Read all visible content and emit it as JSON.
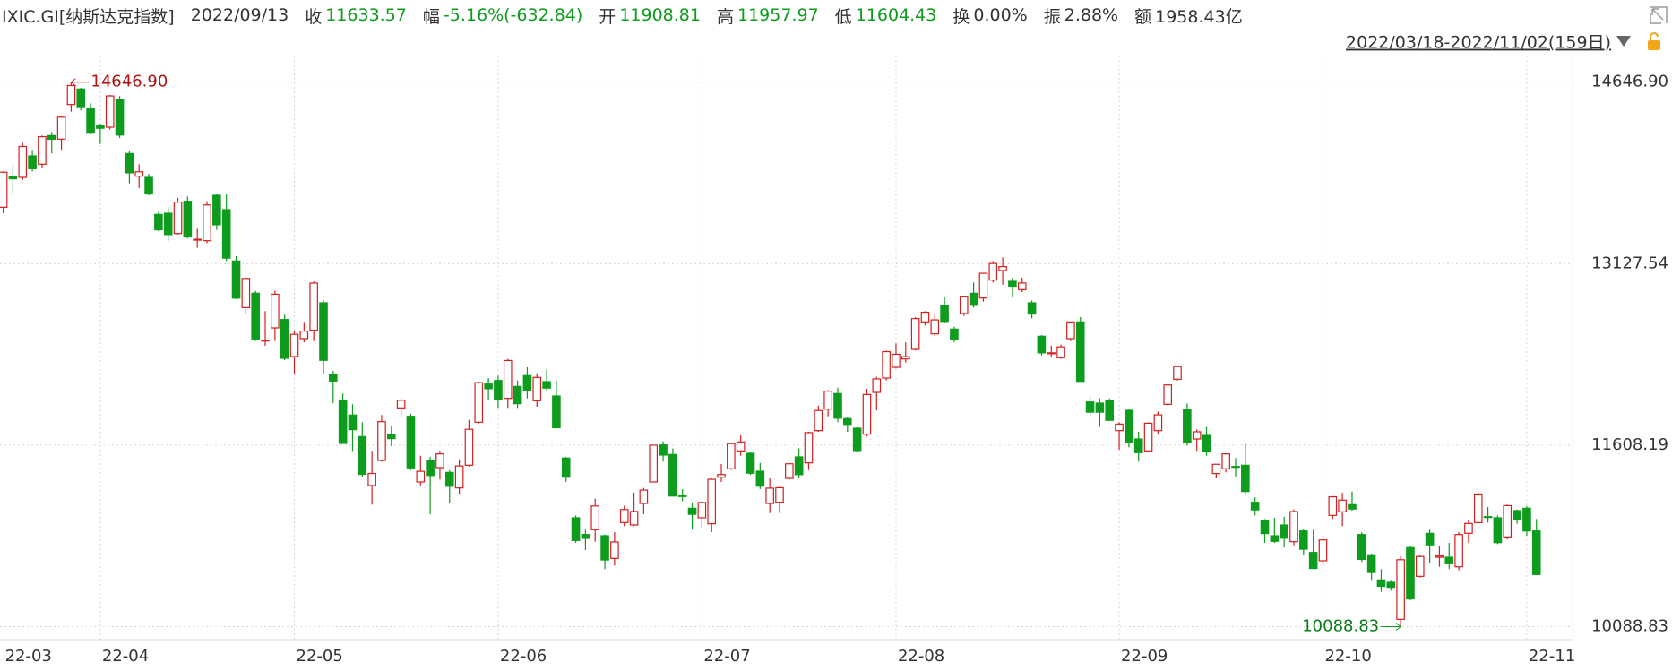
{
  "header": {
    "symbol": "IXIC.GI[纳斯达克指数]",
    "date": "2022/09/13",
    "fields": [
      {
        "label": "收",
        "value": "11633.57",
        "color": "#0e9c1e"
      },
      {
        "label": "幅",
        "value": "-5.16%(-632.84)",
        "color": "#0e9c1e"
      },
      {
        "label": "开",
        "value": "11908.81",
        "color": "#0e9c1e"
      },
      {
        "label": "高",
        "value": "11957.97",
        "color": "#0e9c1e"
      },
      {
        "label": "低",
        "value": "11604.43",
        "color": "#0e9c1e"
      },
      {
        "label": "换",
        "value": "0.00%",
        "color": "#333333"
      },
      {
        "label": "振",
        "value": "2.88%",
        "color": "#333333"
      },
      {
        "label": "额",
        "value": "1958.43亿",
        "color": "#333333"
      }
    ],
    "range": "2022/03/18-2022/11/02(159日)"
  },
  "chart_data": {
    "type": "candlestick",
    "up_color": "#d21f1f",
    "down_color": "#0e9c1e",
    "grid": true,
    "categories": [
      "22-03",
      null,
      null,
      null,
      null,
      null,
      null,
      null,
      null,
      null,
      "22-04",
      null,
      null,
      null,
      null,
      null,
      null,
      null,
      null,
      null,
      null,
      null,
      null,
      null,
      null,
      null,
      null,
      null,
      null,
      null,
      "22-05",
      null,
      null,
      null,
      null,
      null,
      null,
      null,
      null,
      null,
      null,
      null,
      null,
      null,
      null,
      null,
      null,
      null,
      null,
      null,
      null,
      "22-06",
      null,
      null,
      null,
      null,
      null,
      null,
      null,
      null,
      null,
      null,
      null,
      null,
      null,
      null,
      null,
      null,
      null,
      null,
      null,
      null,
      "22-07",
      null,
      null,
      null,
      null,
      null,
      null,
      null,
      null,
      null,
      null,
      null,
      null,
      null,
      null,
      null,
      null,
      null,
      null,
      null,
      "22-08",
      null,
      null,
      null,
      null,
      null,
      null,
      null,
      null,
      null,
      null,
      null,
      null,
      null,
      null,
      null,
      null,
      null,
      null,
      null,
      null,
      null,
      null,
      "22-09",
      null,
      null,
      null,
      null,
      null,
      null,
      null,
      null,
      null,
      null,
      null,
      null,
      null,
      null,
      null,
      null,
      null,
      null,
      null,
      null,
      "22-10",
      null,
      null,
      null,
      null,
      null,
      null,
      null,
      null,
      null,
      null,
      null,
      null,
      null,
      null,
      null,
      null,
      null,
      null,
      null,
      null,
      "22-11",
      null
    ],
    "open": [
      13600,
      13860,
      13850,
      14030,
      13960,
      14200,
      14170,
      14460,
      14590,
      14430,
      14280,
      14270,
      14500,
      14050,
      13860,
      13850,
      13540,
      13550,
      13380,
      13650,
      13330,
      13320,
      13700,
      13580,
      13150,
      12760,
      12880,
      12480,
      12590,
      12660,
      12350,
      12500,
      12570,
      12800,
      12200,
      11980,
      11860,
      11680,
      11270,
      11480,
      11700,
      11920,
      11850,
      11300,
      11480,
      11420,
      11380,
      11250,
      11440,
      11800,
      12120,
      12150,
      12000,
      12100,
      12190,
      11980,
      12140,
      12020,
      11500,
      11000,
      10860,
      10900,
      10850,
      10660,
      10960,
      10940,
      11120,
      11300,
      11610,
      11530,
      11190,
      11080,
      11000,
      10950,
      11340,
      11410,
      11560,
      11540,
      11390,
      11120,
      11130,
      11330,
      11510,
      11460,
      11730,
      11910,
      12040,
      11830,
      11750,
      11700,
      12050,
      12170,
      12260,
      12330,
      12410,
      12640,
      12540,
      12780,
      12580,
      12710,
      12880,
      12840,
      12990,
      13070,
      12980,
      12910,
      12800,
      12520,
      12380,
      12340,
      12500,
      12640,
      11970,
      11960,
      11980,
      11730,
      11900,
      11660,
      11560,
      11730,
      11950,
      12160,
      11908.81,
      11660,
      11690,
      11370,
      11410,
      11430,
      11440,
      11130,
      10980,
      10850,
      10940,
      10800,
      10890,
      10710,
      10640,
      11020,
      11050,
      11110,
      10860,
      10690,
      10480,
      10460,
      10150,
      10750,
      10510,
      10870,
      10670,
      10670,
      10590,
      10870,
      10960,
      11010,
      11000,
      10840,
      11060,
      11080,
      10890
    ],
    "high": [
      13900,
      13960,
      14140,
      14080,
      14200,
      14230,
      14360,
      14646.9,
      14600,
      14470,
      14300,
      14540,
      14530,
      14070,
      13960,
      13880,
      13560,
      13600,
      13680,
      13690,
      13420,
      13650,
      13710,
      13710,
      13190,
      13010,
      12900,
      12730,
      12900,
      12700,
      12560,
      12640,
      12980,
      12820,
      12230,
      12040,
      11950,
      11800,
      11560,
      11860,
      11770,
      12000,
      11870,
      11520,
      11510,
      11560,
      11400,
      11490,
      11820,
      12140,
      12170,
      12190,
      12330,
      12150,
      12260,
      12210,
      12240,
      12150,
      11510,
      11020,
      10900,
      11160,
      10860,
      10880,
      11100,
      11210,
      11250,
      11610,
      11640,
      11580,
      11240,
      11120,
      11140,
      11330,
      11450,
      11630,
      11690,
      11550,
      11460,
      11330,
      11270,
      11460,
      11580,
      11720,
      11940,
      12070,
      12090,
      11840,
      11760,
      12080,
      12180,
      12400,
      12460,
      12470,
      12680,
      12730,
      12700,
      12850,
      12600,
      12860,
      12970,
      13050,
      13150,
      13180,
      13010,
      13010,
      12820,
      12530,
      12440,
      12450,
      12640,
      12680,
      12020,
      12000,
      12000,
      11800,
      11910,
      11720,
      11800,
      11890,
      12120,
      12270,
      11957.97,
      11740,
      11760,
      11450,
      11540,
      11500,
      11620,
      11170,
      10990,
      11000,
      11010,
      11070,
      10910,
      10900,
      10850,
      11180,
      11210,
      11220,
      10880,
      10700,
      10570,
      10480,
      10680,
      10760,
      10690,
      10900,
      10760,
      10790,
      10880,
      10980,
      11210,
      11090,
      11020,
      11110,
      11070,
      11100,
      10990
    ],
    "low": [
      13550,
      13720,
      13830,
      13900,
      13930,
      14050,
      14080,
      14400,
      14410,
      14210,
      14130,
      14250,
      14180,
      13800,
      13760,
      13700,
      13400,
      13320,
      13370,
      13340,
      13260,
      13300,
      13410,
      13150,
      12830,
      12700,
      12480,
      12440,
      12480,
      12320,
      12200,
      12470,
      12480,
      12200,
      11960,
      11620,
      11560,
      11340,
      11110,
      11470,
      11600,
      11840,
      11400,
      11270,
      11030,
      11320,
      11120,
      11200,
      11430,
      11790,
      11990,
      11920,
      11920,
      11920,
      12000,
      11930,
      12060,
      11750,
      11300,
      10790,
      10730,
      10800,
      10570,
      10600,
      10930,
      10930,
      11030,
      11300,
      11470,
      11180,
      11140,
      10900,
      10920,
      10880,
      11300,
      11400,
      11520,
      11360,
      11240,
      11040,
      11040,
      11320,
      11330,
      11400,
      11720,
      11850,
      11800,
      11720,
      11550,
      11680,
      11900,
      12150,
      12250,
      12300,
      12400,
      12610,
      12520,
      12630,
      12470,
      12690,
      12760,
      12810,
      12970,
      12950,
      12850,
      12890,
      12670,
      12360,
      12350,
      12330,
      12480,
      12140,
      11850,
      11760,
      11810,
      11570,
      11590,
      11470,
      11550,
      11700,
      11940,
      12150,
      11604.43,
      11560,
      11520,
      11330,
      11380,
      11340,
      11200,
      11020,
      10790,
      10790,
      10750,
      10770,
      10690,
      10570,
      10600,
      10990,
      10930,
      11060,
      10630,
      10480,
      10380,
      10390,
      10088.83,
      10310,
      10500,
      10620,
      10590,
      10570,
      10560,
      10790,
      10950,
      10960,
      10780,
      10820,
      10950,
      10850,
      10520
    ],
    "close": [
      13893,
      13838,
      14109,
      13922,
      14191,
      14169,
      14354,
      14619,
      14442,
      14220,
      14261,
      14532,
      14204,
      13888,
      13897,
      13711,
      13411,
      13371,
      13643,
      13351,
      13332,
      13619,
      13453,
      13174,
      12839,
      13004,
      12490,
      12488,
      12872,
      12335,
      12536,
      12563,
      12965,
      12318,
      12145,
      11623,
      11738,
      11364,
      11371,
      11805,
      11663,
      11984,
      11418,
      11389,
      11354,
      11535,
      11264,
      11434,
      11741,
      12131,
      12081,
      11994,
      12317,
      11955,
      12062,
      12175,
      12086,
      11754,
      11340,
      10810,
      10828,
      11099,
      10647,
      10798,
      11069,
      11053,
      11232,
      11608,
      11525,
      11182,
      11178,
      11029,
      11128,
      11322,
      11362,
      11621,
      11635,
      11373,
      11265,
      11248,
      11252,
      11452,
      11361,
      11713,
      11898,
      12060,
      11834,
      11782,
      11563,
      12032,
      12163,
      12391,
      12369,
      12349,
      12668,
      12721,
      12657,
      12644,
      12493,
      12855,
      12779,
      13047,
      13129,
      13103,
      12939,
      12966,
      12706,
      12381,
      12381,
      12431,
      12640,
      12142,
      11884,
      11884,
      11816,
      11785,
      11631,
      11545,
      11792,
      11862,
      12112,
      12266,
      11633.57,
      11720,
      11552,
      11448,
      11535,
      11425,
      11220,
      11066,
      10868,
      10803,
      10829,
      11052,
      10737,
      10576,
      10815,
      11176,
      11148,
      11073,
      10652,
      10542,
      10426,
      10418,
      10649,
      10321,
      10676,
      10773,
      10680,
      10615,
      10860,
      10953,
      11199,
      11004,
      10792,
      11102,
      10988,
      10890,
      10525
    ],
    "ylim": [
      9980,
      14870
    ],
    "yticks": [
      {
        "value": 14646.9,
        "label": "14646.90"
      },
      13127.54,
      11608.19,
      10088.83
    ],
    "max_label": "14646.90",
    "min_label": "10088.83"
  }
}
